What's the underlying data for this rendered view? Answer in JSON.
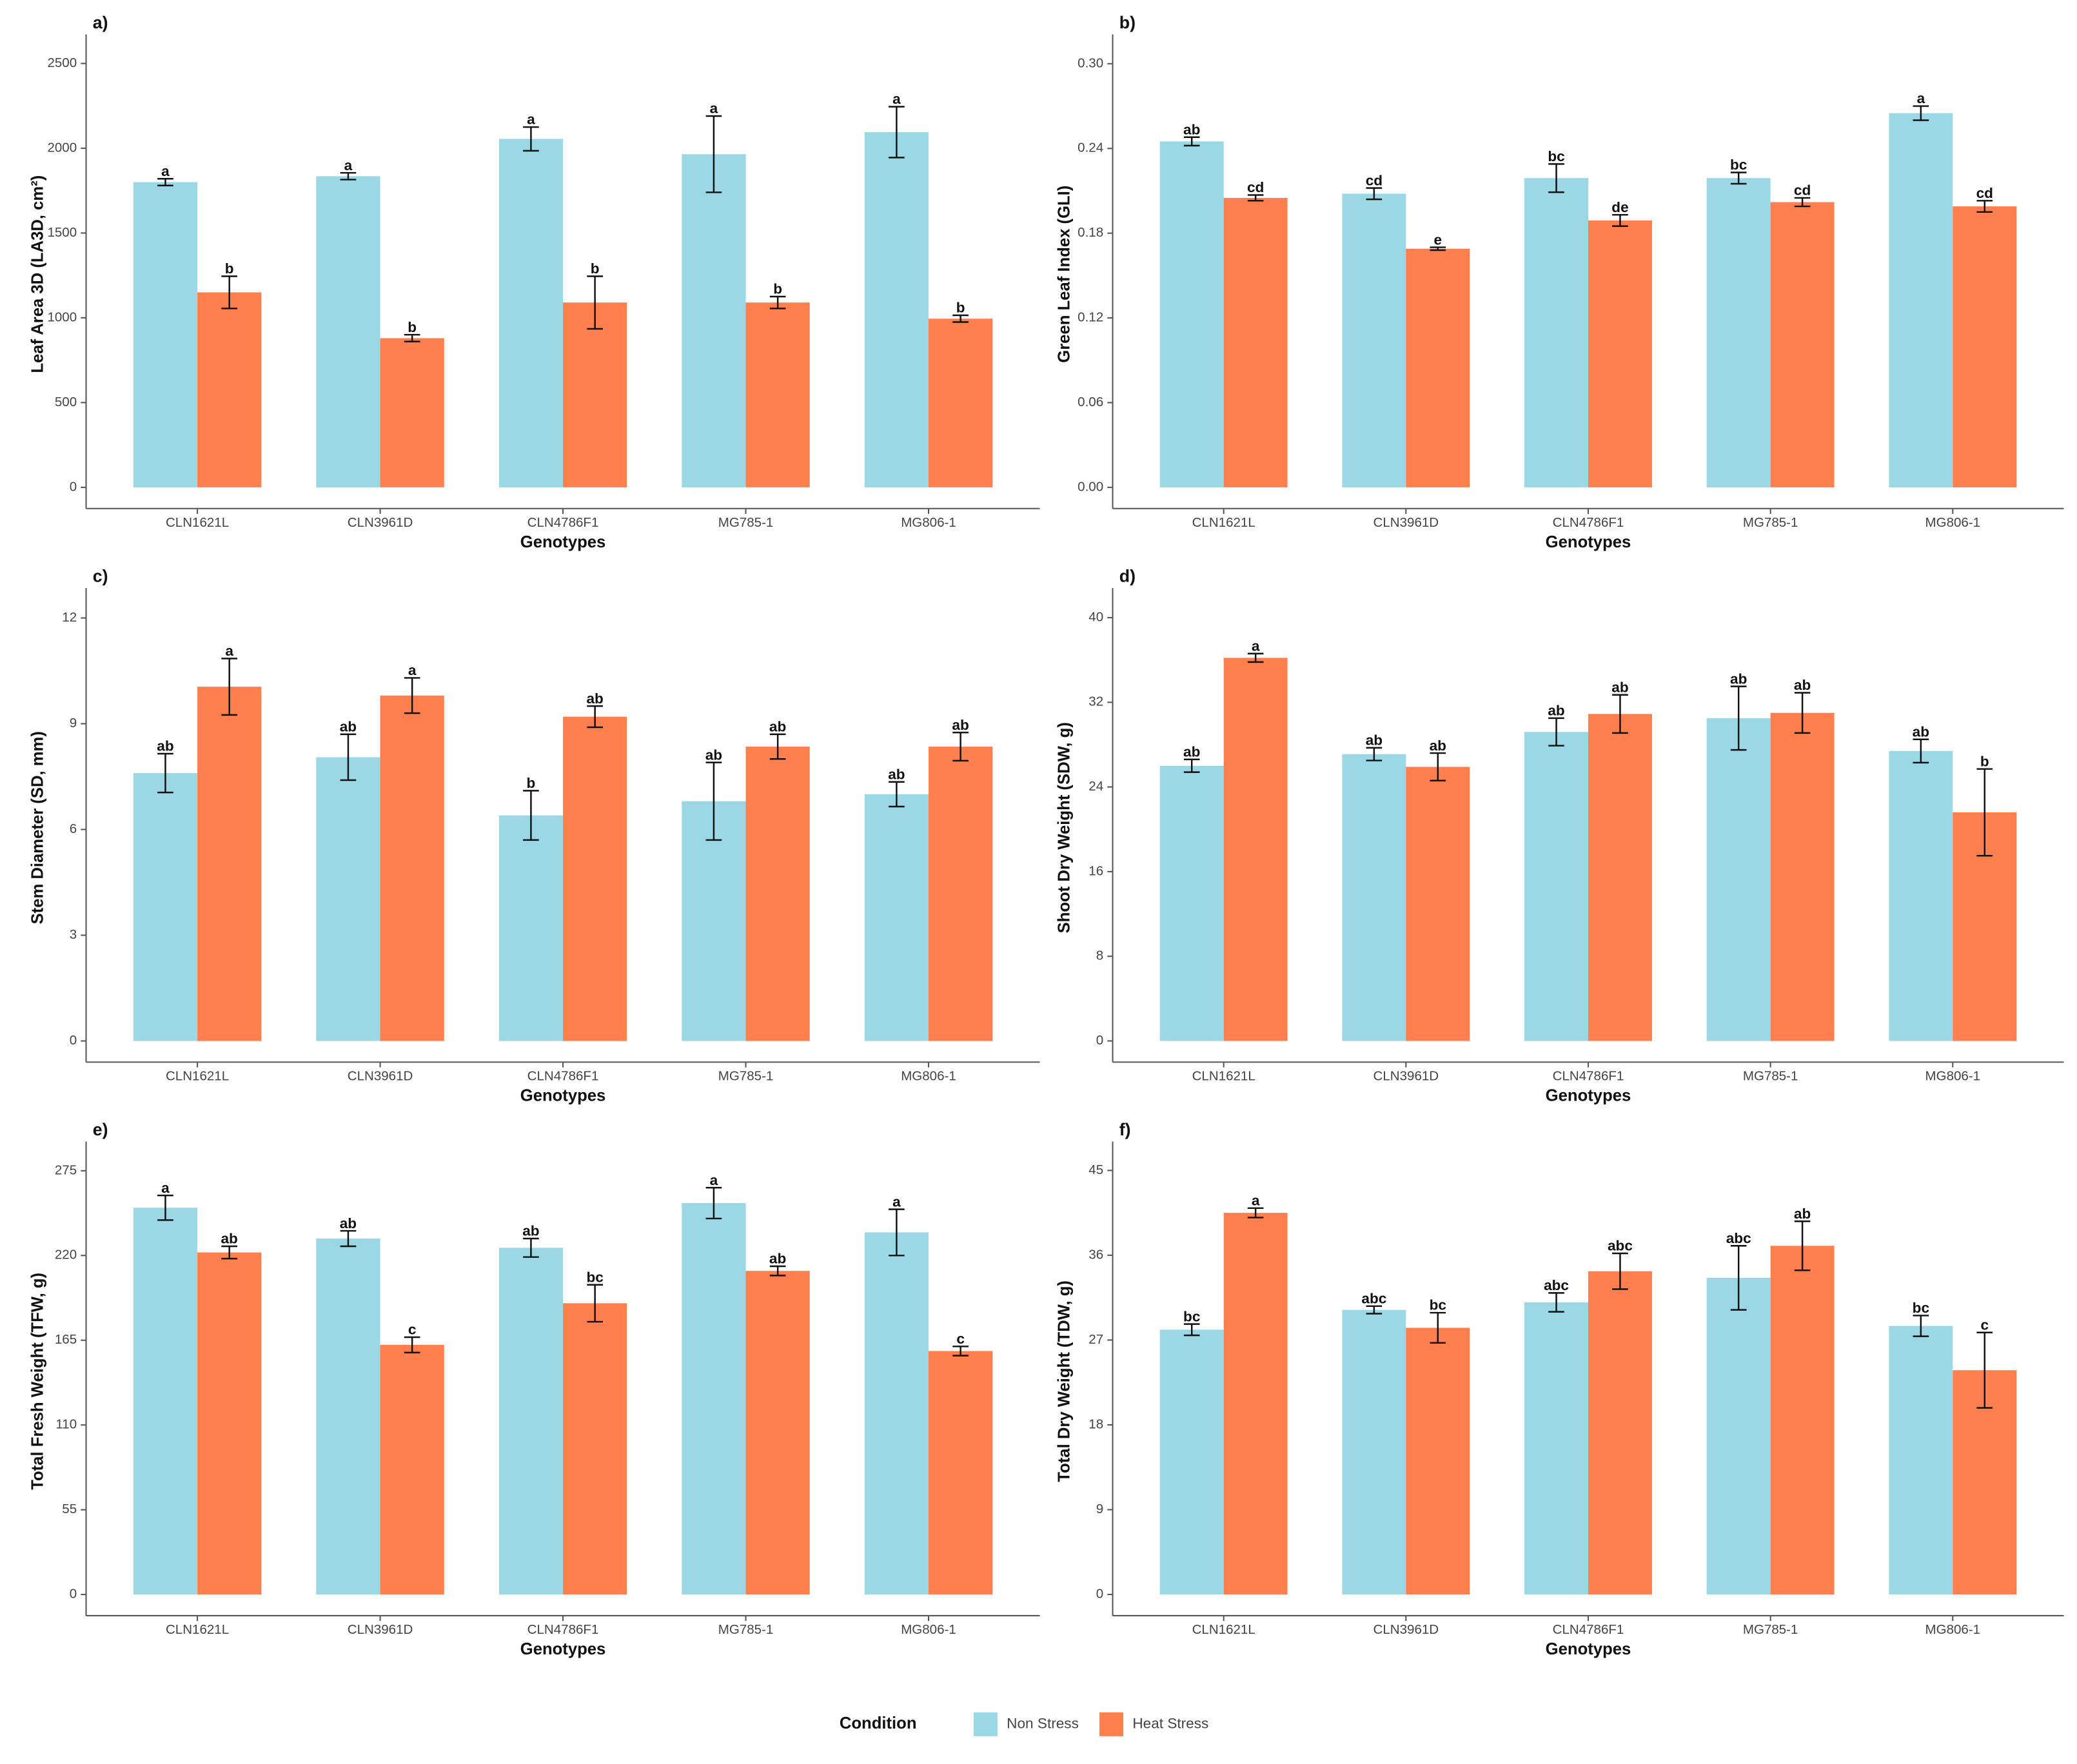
{
  "chart_data": [
    {
      "type": "bar",
      "title": "a)",
      "ylabel": "Leaf Area 3D (LA3D, cm²)",
      "xlabel": "Genotypes",
      "categories": [
        "CLN1621L",
        "CLN3961D",
        "CLN4786F1",
        "MG785-1",
        "MG806-1"
      ],
      "ylim": [
        -125,
        2640
      ],
      "yticks": [
        0,
        500,
        1000,
        1500,
        2000,
        2500
      ],
      "series": [
        {
          "color": "#9AD8E6",
          "values": [
            1800,
            1835,
            2055,
            1965,
            2095
          ],
          "errors": [
            20,
            20,
            70,
            225,
            150
          ],
          "letters": [
            "a",
            "a",
            "a",
            "a",
            "a"
          ]
        },
        {
          "color": "#FF7F4F",
          "values": [
            1150,
            880,
            1090,
            1090,
            995
          ],
          "errors": [
            95,
            20,
            155,
            35,
            20
          ],
          "letters": [
            "b",
            "b",
            "b",
            "b",
            "b"
          ]
        }
      ]
    },
    {
      "type": "bar",
      "title": "b)",
      "ylabel": "Green Leaf Index (GLI)",
      "xlabel": "Genotypes",
      "categories": [
        "CLN1621L",
        "CLN3961D",
        "CLN4786F1",
        "MG785-1",
        "MG806-1"
      ],
      "ylim": [
        -0.015,
        0.317
      ],
      "yticks": [
        {
          "value": 0,
          "label": "0.00"
        },
        {
          "value": 0.06,
          "label": "0.06"
        },
        {
          "value": 0.12,
          "label": "0.12"
        },
        {
          "value": 0.18,
          "label": "0.18"
        },
        {
          "value": 0.24,
          "label": "0.24"
        },
        {
          "value": 0.3,
          "label": "0.30"
        }
      ],
      "series": [
        {
          "color": "#9AD8E6",
          "values": [
            0.245,
            0.208,
            0.219,
            0.219,
            0.265
          ],
          "errors": [
            0.003,
            0.004,
            0.01,
            0.004,
            0.005
          ],
          "letters": [
            "ab",
            "cd",
            "bc",
            "bc",
            "a"
          ]
        },
        {
          "color": "#FF7F4F",
          "values": [
            0.205,
            0.169,
            0.189,
            0.202,
            0.199
          ],
          "errors": [
            0.002,
            0.001,
            0.004,
            0.003,
            0.004
          ],
          "letters": [
            "cd",
            "e",
            "de",
            "cd",
            "cd"
          ]
        }
      ]
    },
    {
      "type": "bar",
      "title": "c)",
      "ylabel": "Stem Diameter (SD, mm)",
      "xlabel": "Genotypes",
      "categories": [
        "CLN1621L",
        "CLN3961D",
        "CLN4786F1",
        "MG785-1",
        "MG806-1"
      ],
      "ylim": [
        -0.6,
        12.7
      ],
      "yticks": [
        0,
        3,
        6,
        9,
        12
      ],
      "series": [
        {
          "color": "#9AD8E6",
          "values": [
            7.6,
            8.05,
            6.4,
            6.8,
            7.0
          ],
          "errors": [
            0.55,
            0.65,
            0.7,
            1.1,
            0.35
          ],
          "letters": [
            "ab",
            "ab",
            "b",
            "ab",
            "ab"
          ]
        },
        {
          "color": "#FF7F4F",
          "values": [
            10.05,
            9.8,
            9.2,
            8.35,
            8.35
          ],
          "errors": [
            0.8,
            0.5,
            0.3,
            0.35,
            0.4
          ],
          "letters": [
            "a",
            "a",
            "ab",
            "ab",
            "ab"
          ]
        }
      ]
    },
    {
      "type": "bar",
      "title": "d)",
      "ylabel": "Shoot Dry Weight (SDW, g)",
      "xlabel": "Genotypes",
      "categories": [
        "CLN1621L",
        "CLN3961D",
        "CLN4786F1",
        "MG785-1",
        "MG806-1"
      ],
      "ylim": [
        -2,
        42.3
      ],
      "yticks": [
        0,
        8,
        16,
        24,
        32,
        40
      ],
      "series": [
        {
          "color": "#9AD8E6",
          "values": [
            26,
            27.1,
            29.2,
            30.5,
            27.4
          ],
          "errors": [
            0.6,
            0.6,
            1.3,
            3,
            1.1
          ],
          "letters": [
            "ab",
            "ab",
            "ab",
            "ab",
            "ab"
          ]
        },
        {
          "color": "#FF7F4F",
          "values": [
            36.2,
            25.9,
            30.9,
            31,
            21.6
          ],
          "errors": [
            0.4,
            1.3,
            1.8,
            1.9,
            4.1
          ],
          "letters": [
            "a",
            "ab",
            "ab",
            "ab",
            "b"
          ]
        }
      ]
    },
    {
      "type": "bar",
      "title": "e)",
      "ylabel": "Total Fresh Weight (TFW, g)",
      "xlabel": "Genotypes",
      "categories": [
        "CLN1621L",
        "CLN3961D",
        "CLN4786F1",
        "MG785-1",
        "MG806-1"
      ],
      "ylim": [
        -13.75,
        290.5
      ],
      "yticks": [
        0,
        55,
        110,
        165,
        220,
        275
      ],
      "series": [
        {
          "color": "#9AD8E6",
          "values": [
            251,
            231,
            225,
            254,
            235
          ],
          "errors": [
            8,
            5,
            6,
            10,
            15
          ],
          "letters": [
            "a",
            "ab",
            "ab",
            "a",
            "a"
          ]
        },
        {
          "color": "#FF7F4F",
          "values": [
            222,
            162,
            189,
            210,
            158
          ],
          "errors": [
            4,
            5,
            12,
            3,
            3
          ],
          "letters": [
            "ab",
            "c",
            "bc",
            "ab",
            "c"
          ]
        }
      ]
    },
    {
      "type": "bar",
      "title": "f)",
      "ylabel": "Total Dry Weight (TDW, g)",
      "xlabel": "Genotypes",
      "categories": [
        "CLN1621L",
        "CLN3961D",
        "CLN4786F1",
        "MG785-1",
        "MG806-1"
      ],
      "ylim": [
        -2.25,
        47.5
      ],
      "yticks": [
        0,
        9,
        18,
        27,
        36,
        45
      ],
      "series": [
        {
          "color": "#9AD8E6",
          "values": [
            28.1,
            30.2,
            31,
            33.6,
            28.5
          ],
          "errors": [
            0.6,
            0.4,
            1,
            3.4,
            1.1
          ],
          "letters": [
            "bc",
            "abc",
            "abc",
            "abc",
            "bc"
          ]
        },
        {
          "color": "#FF7F4F",
          "values": [
            40.5,
            28.3,
            34.3,
            37,
            23.8
          ],
          "errors": [
            0.5,
            1.6,
            1.9,
            2.6,
            4
          ],
          "letters": [
            "a",
            "bc",
            "abc",
            "ab",
            "c"
          ]
        }
      ]
    }
  ],
  "legend": {
    "title": "Condition",
    "entries": [
      {
        "name": "Non Stress",
        "color": "#9AD8E6"
      },
      {
        "name": "Heat Stress",
        "color": "#FF7F4F"
      }
    ]
  }
}
